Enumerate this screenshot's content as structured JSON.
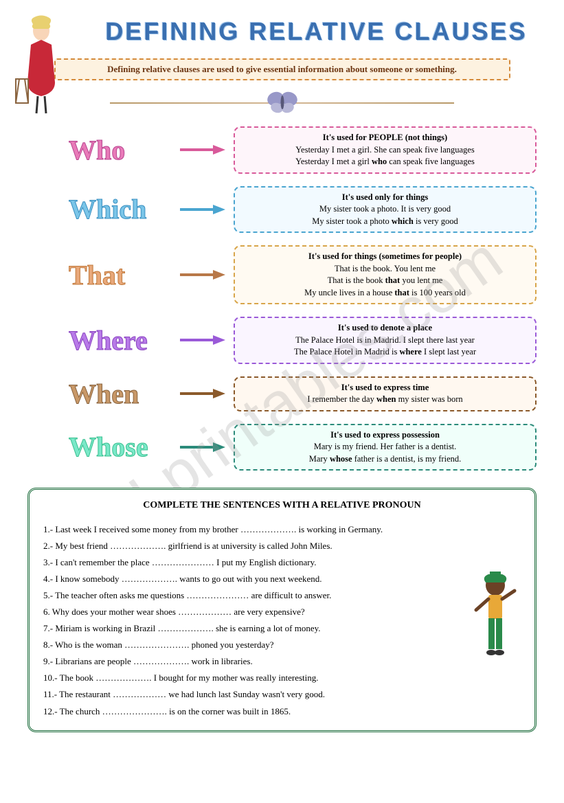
{
  "title": "DEFINING RELATIVE CLAUSES",
  "intro": "Defining relative clauses are used to give essential information about someone or something.",
  "watermark": "ESLprintables.com",
  "pronouns": [
    {
      "word": "Who",
      "word_class": "word-who",
      "box_class": "box-who",
      "arrow_color": "#d85a9a",
      "title": "It's used for PEOPLE (not things)",
      "lines": [
        "Yesterday I met a girl. She can speak five languages",
        "Yesterday I met a girl <b>who</b> can speak five languages"
      ]
    },
    {
      "word": "Which",
      "word_class": "word-which",
      "box_class": "box-which",
      "arrow_color": "#4aa5d0",
      "title": "It's used only for things",
      "lines": [
        "My sister took a photo. It is very good",
        "My sister took a photo <b>which</b> is very good"
      ]
    },
    {
      "word": "That",
      "word_class": "word-that",
      "box_class": "box-that",
      "arrow_color": "#b87848",
      "title": "It's used for things (sometimes for people)",
      "lines": [
        "That is the book. You lent me",
        "That is the book <b>that</b> you lent me",
        "My uncle lives in a house <b>that</b> is 100 years old"
      ]
    },
    {
      "word": "Where",
      "word_class": "word-where",
      "box_class": "box-where",
      "arrow_color": "#9a5ad8",
      "title": "It's used to denote a place",
      "lines": [
        "The Palace Hotel is in Madrid. I slept there last year",
        "The Palace Hotel in Madrid is <b>where</b> I slept last year"
      ]
    },
    {
      "word": "When",
      "word_class": "word-when",
      "box_class": "box-when",
      "arrow_color": "#8b5a2b",
      "title": "It's used to express time",
      "lines": [
        "I remember the day <b>when</b> my sister was born"
      ]
    },
    {
      "word": "Whose",
      "word_class": "word-whose",
      "box_class": "box-whose",
      "arrow_color": "#2b8b7a",
      "title": "It's used to express possession",
      "lines": [
        "Mary is my friend. Her father is a dentist.",
        "Mary <b>whose</b> father is a dentist, is my friend."
      ]
    }
  ],
  "exercise": {
    "title": "COMPLETE THE SENTENCES WITH A RELATIVE PRONOUN",
    "items": [
      "1.- Last week I received some money from my brother ………………. is working in Germany.",
      "2.- My best friend ………………. girlfriend is at university is called John Miles.",
      "3.- I can't remember the place ………………… I put my English dictionary.",
      "4.- I know somebody ………………. wants to go out with you next weekend.",
      "5.- The teacher often asks me questions ………………… are difficult to answer.",
      "6.  Why does your  mother wear shoes ……………… are very expensive?",
      "7.- Miriam is working in Brazil ………………. she is earning a lot of money.",
      "8.-  Who is the woman …………………. phoned you yesterday?",
      "9.- Librarians are people ………………. work in libraries.",
      "10.- The book ………………. I bought for my mother was really interesting.",
      "11.- The restaurant ……………… we had lunch last Sunday wasn't very good.",
      "12.- The church …………………. is on the corner was built in 1865."
    ]
  }
}
